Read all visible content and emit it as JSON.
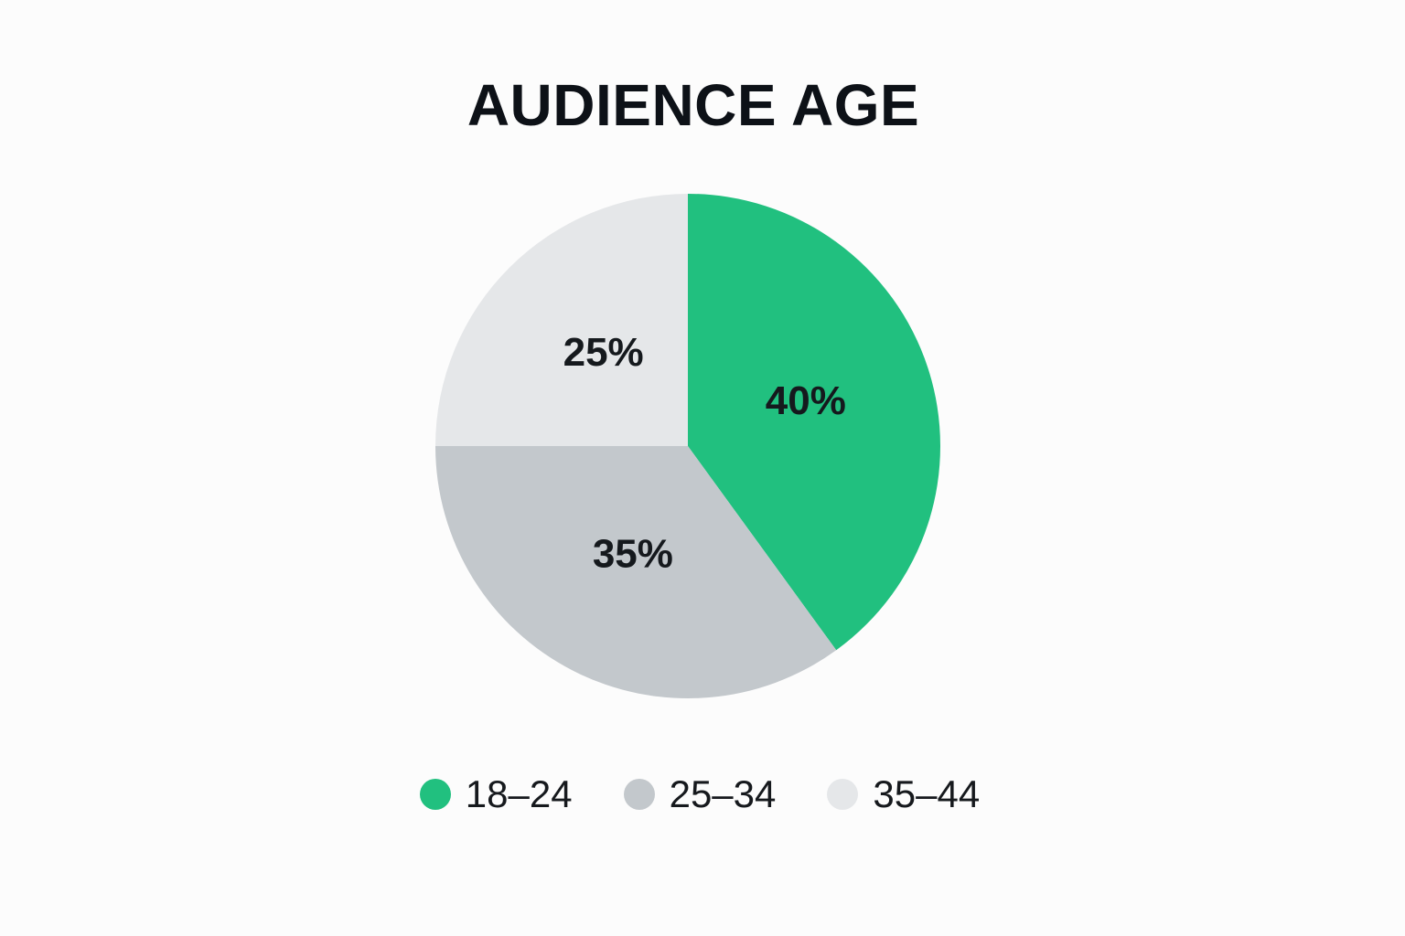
{
  "chart_data": {
    "type": "pie",
    "title": "AUDIENCE AGE",
    "categories": [
      "18–24",
      "25–34",
      "35–44"
    ],
    "values": [
      40,
      35,
      25
    ],
    "value_labels": [
      "40%",
      "35%",
      "25%"
    ],
    "colors": [
      "#21c07f",
      "#c3c8cc",
      "#e5e7e9"
    ],
    "legend_position": "bottom"
  }
}
